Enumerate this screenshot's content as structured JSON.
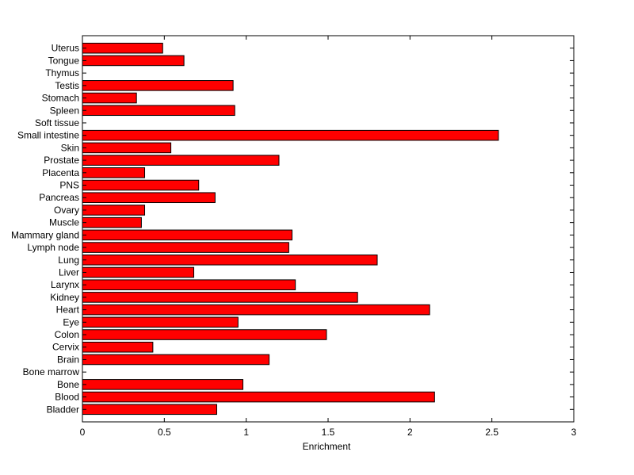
{
  "chart_data": {
    "type": "bar",
    "orientation": "horizontal",
    "title": "",
    "xlabel": "Enrichment",
    "ylabel": "",
    "xlim": [
      0,
      3
    ],
    "xticks": [
      "0",
      "0.5",
      "1",
      "1.5",
      "2",
      "2.5",
      "3"
    ],
    "grid": false,
    "bar_color": "#ff0000",
    "categories": [
      "Bladder",
      "Blood",
      "Bone",
      "Bone marrow",
      "Brain",
      "Cervix",
      "Colon",
      "Eye",
      "Heart",
      "Kidney",
      "Larynx",
      "Liver",
      "Lung",
      "Lymph node",
      "Mammary gland",
      "Muscle",
      "Ovary",
      "Pancreas",
      "PNS",
      "Placenta",
      "Prostate",
      "Skin",
      "Small intestine",
      "Soft tissue",
      "Spleen",
      "Stomach",
      "Testis",
      "Thymus",
      "Tongue",
      "Uterus"
    ],
    "values": [
      0.82,
      2.15,
      0.98,
      0,
      1.14,
      0.43,
      1.49,
      0.95,
      2.12,
      1.68,
      1.3,
      0.68,
      1.8,
      1.26,
      1.28,
      0.36,
      0.38,
      0.81,
      0.71,
      0.38,
      1.2,
      0.54,
      2.54,
      0,
      0.93,
      0.33,
      0.92,
      0,
      0.62,
      0.49
    ]
  }
}
